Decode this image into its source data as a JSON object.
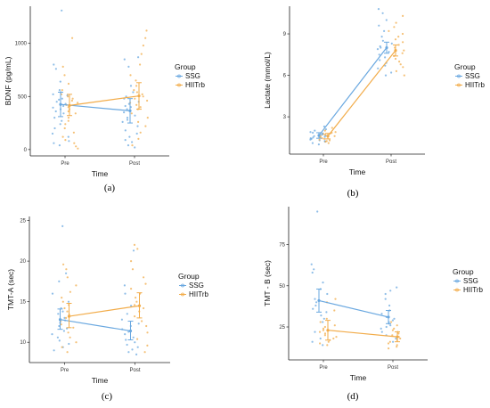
{
  "colors": {
    "SSG": "#6aa8e0",
    "HIITrb": "#f2ac4a",
    "axis": "#222222"
  },
  "chart_data": [
    {
      "type": "scatter",
      "panel": "(a)",
      "xlabel": "Time",
      "ylabel": "BDNF (pg/mL)",
      "categories": [
        "Pre",
        "Post"
      ],
      "ylim": [
        -60,
        1350
      ],
      "yticks": [
        0,
        500,
        1000
      ],
      "legend_title": "Group",
      "legend_placement": "right",
      "series": [
        {
          "name": "SSG",
          "mean": [
            425,
            365
          ],
          "ci": [
            [
              310,
              540
            ],
            [
              250,
              480
            ]
          ],
          "points": [
            [
              640,
              1310,
              800,
              760,
              560,
              540,
              520,
              510,
              480,
              470,
              450,
              430,
              410,
              395,
              380,
              360,
              340,
              300,
              270,
              240,
              200,
              150,
              120,
              80,
              60,
              40
            ],
            [
              870,
              850,
              780,
              600,
              540,
              500,
              480,
              450,
              430,
              410,
              400,
              380,
              350,
              320,
              300,
              280,
              260,
              220,
              180,
              150,
              120,
              90,
              70,
              40,
              20
            ]
          ]
        },
        {
          "name": "HIITrb",
          "mean": [
            415,
            505
          ],
          "ci": [
            [
              320,
              520
            ],
            [
              380,
              630
            ]
          ],
          "points": [
            [
              1050,
              780,
              700,
              620,
              560,
              520,
              500,
              480,
              460,
              440,
              420,
              400,
              380,
              360,
              340,
              300,
              270,
              240,
              200,
              160,
              120,
              90,
              60,
              30,
              10
            ],
            [
              1120,
              1050,
              980,
              900,
              800,
              700,
              650,
              600,
              560,
              540,
              520,
              500,
              480,
              460,
              440,
              420,
              400,
              380,
              340,
              300,
              260,
              220,
              160,
              100,
              40
            ]
          ]
        }
      ]
    },
    {
      "type": "scatter",
      "panel": "(b)",
      "xlabel": "Time",
      "ylabel": "Lactate (mmol/L)",
      "categories": [
        "Pre",
        "Post"
      ],
      "ylim": [
        0.3,
        11
      ],
      "yticks": [
        3,
        6,
        9
      ],
      "legend_title": "Group",
      "legend_placement": "right",
      "series": [
        {
          "name": "SSG",
          "mean": [
            1.65,
            8.0
          ],
          "ci": [
            [
              1.45,
              1.85
            ],
            [
              7.6,
              8.4
            ]
          ],
          "points": [
            [
              2.3,
              2.1,
              2.0,
              1.9,
              1.85,
              1.8,
              1.75,
              1.7,
              1.65,
              1.6,
              1.55,
              1.5,
              1.45,
              1.4,
              1.35,
              1.3,
              1.25,
              1.2,
              1.1,
              1.0
            ],
            [
              10.8,
              10.5,
              10.0,
              9.6,
              9.2,
              8.8,
              8.5,
              8.3,
              8.1,
              8.0,
              7.9,
              7.7,
              7.5,
              7.3,
              7.1,
              6.9,
              6.7,
              6.5,
              6.2,
              6.0
            ]
          ]
        },
        {
          "name": "HIITrb",
          "mean": [
            1.6,
            7.8
          ],
          "ci": [
            [
              1.4,
              1.8
            ],
            [
              7.4,
              8.2
            ]
          ],
          "points": [
            [
              2.2,
              2.0,
              1.9,
              1.85,
              1.8,
              1.75,
              1.7,
              1.65,
              1.6,
              1.55,
              1.5,
              1.45,
              1.4,
              1.35,
              1.3,
              1.25,
              1.2,
              1.1
            ],
            [
              10.3,
              9.8,
              9.5,
              9.2,
              9.0,
              8.8,
              8.6,
              8.4,
              8.2,
              8.0,
              7.8,
              7.6,
              7.4,
              7.2,
              7.0,
              6.8,
              6.6,
              6.3,
              6.0
            ]
          ]
        }
      ]
    },
    {
      "type": "scatter",
      "panel": "(c)",
      "xlabel": "Time",
      "ylabel": "TMT-A (sec)",
      "categories": [
        "Pre",
        "Post"
      ],
      "ylim": [
        7.5,
        25.5
      ],
      "yticks": [
        10,
        15,
        20,
        25
      ],
      "legend_title": "Group",
      "legend_placement": "right",
      "series": [
        {
          "name": "SSG",
          "mean": [
            12.8,
            11.4
          ],
          "ci": [
            [
              11.6,
              14.1
            ],
            [
              10.3,
              12.6
            ]
          ],
          "points": [
            [
              24.3,
              18.5,
              17.5,
              16.0,
              15.0,
              14.2,
              13.8,
              13.5,
              13.0,
              12.7,
              12.4,
              12.0,
              11.7,
              11.4,
              11.0,
              10.6,
              10.2,
              9.8,
              9.4,
              9.0
            ],
            [
              21.3,
              17.0,
              16.0,
              14.5,
              13.5,
              12.8,
              12.3,
              12.0,
              11.6,
              11.3,
              11.0,
              10.6,
              10.3,
              10.0,
              9.7,
              9.4,
              9.1,
              8.8,
              8.5
            ]
          ]
        },
        {
          "name": "HIITrb",
          "mean": [
            13.2,
            14.5
          ],
          "ci": [
            [
              11.8,
              14.8
            ],
            [
              13.0,
              16.1
            ]
          ],
          "points": [
            [
              19.6,
              19.0,
              18.0,
              17.0,
              16.2,
              15.5,
              15.0,
              14.6,
              14.2,
              13.8,
              13.4,
              13.0,
              12.6,
              12.2,
              11.8,
              11.2,
              10.6,
              10.0,
              9.4,
              8.8
            ],
            [
              22.0,
              21.5,
              20.0,
              19.0,
              18.0,
              17.2,
              16.6,
              16.0,
              15.5,
              15.0,
              14.6,
              14.2,
              13.8,
              13.2,
              12.6,
              12.0,
              11.2,
              10.4,
              9.6,
              8.8
            ]
          ]
        }
      ]
    },
    {
      "type": "scatter",
      "panel": "(d)",
      "xlabel": "Time",
      "ylabel": "TMT - B (sec)",
      "categories": [
        "Pre",
        "Post"
      ],
      "ylim": [
        5,
        98
      ],
      "yticks": [
        25,
        50,
        75
      ],
      "legend_title": "Group",
      "legend_placement": "right",
      "series": [
        {
          "name": "SSG",
          "mean": [
            41,
            31
          ],
          "ci": [
            [
              34,
              48
            ],
            [
              27,
              35
            ]
          ],
          "points": [
            [
              95,
              63,
              60,
              58,
              52,
              48,
              45,
              42,
              40,
              38,
              36,
              34,
              32,
              30,
              28,
              22,
              18,
              16,
              14
            ],
            [
              49,
              47,
              45,
              42,
              38,
              35,
              33,
              31,
              30,
              29,
              28,
              27,
              26,
              25,
              24,
              22,
              20,
              18,
              16
            ]
          ]
        },
        {
          "name": "HIITrb",
          "mean": [
            23,
            19
          ],
          "ci": [
            [
              17,
              29
            ],
            [
              16,
              22
            ]
          ],
          "points": [
            [
              42,
              40,
              35,
              30,
              28,
              26,
              25,
              24,
              23,
              22,
              21,
              20,
              19,
              18,
              17,
              16,
              15,
              14
            ],
            [
              28,
              26,
              24,
              23,
              22,
              21,
              20,
              19,
              18,
              17,
              16,
              15,
              14,
              13,
              12
            ]
          ]
        }
      ]
    }
  ]
}
